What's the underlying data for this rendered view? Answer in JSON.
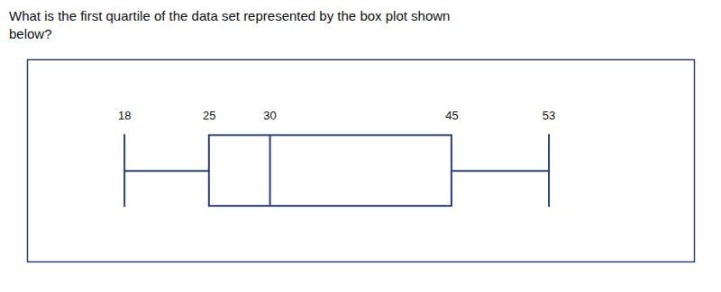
{
  "chart_data": {
    "type": "box",
    "title": "What is the first quartile of the data set represented by the box plot shown\nbelow?",
    "min": 18,
    "q1": 25,
    "median": 30,
    "q3": 45,
    "max": 53,
    "xlim": [
      10,
      65
    ],
    "color": "#2a3f7a",
    "data_labels": true,
    "tick_labels": false
  }
}
